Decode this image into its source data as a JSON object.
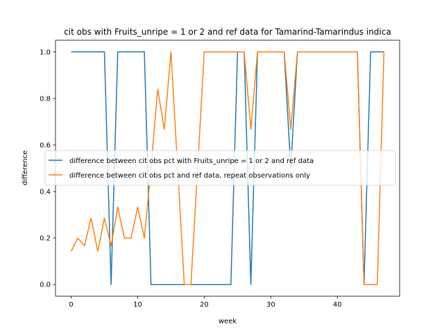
{
  "chart_data": {
    "type": "line",
    "title": "cit obs with Fruits_unripe = 1 or 2 and ref data for Tamarind-Tamarindus indica",
    "xlabel": "week",
    "ylabel": "difference",
    "xlim": [
      -2.35,
      49.35
    ],
    "ylim": [
      -0.05,
      1.05
    ],
    "xticks": [
      0,
      10,
      20,
      30,
      40
    ],
    "xtick_labels": [
      "0",
      "10",
      "20",
      "30",
      "40"
    ],
    "yticks": [
      0.0,
      0.2,
      0.4,
      0.6,
      0.8,
      1.0
    ],
    "ytick_labels": [
      "0.0",
      "0.2",
      "0.4",
      "0.6",
      "0.8",
      "1.0"
    ],
    "grid": false,
    "legend_position": "center-right",
    "series": [
      {
        "name": "difference between cit obs pct with Fruits_unripe = 1 or 2 and ref data",
        "color": "#1f77b4",
        "x": [
          0,
          1,
          2,
          3,
          4,
          5,
          6,
          7,
          8,
          9,
          10,
          11,
          12,
          13,
          14,
          15,
          16,
          17,
          18,
          19,
          20,
          21,
          22,
          23,
          24,
          25,
          26,
          27,
          28,
          29,
          30,
          31,
          32,
          33,
          34,
          35,
          36,
          37,
          38,
          39,
          40,
          41,
          42,
          43,
          44,
          45,
          46,
          47
        ],
        "y": [
          1,
          1,
          1,
          1,
          1,
          1,
          0,
          1,
          1,
          1,
          1,
          1,
          0,
          0,
          0,
          0,
          0,
          0,
          0,
          0,
          0,
          0,
          0,
          0,
          0,
          1,
          1,
          0,
          1,
          1,
          1,
          1,
          1,
          0.5,
          1,
          1,
          1,
          1,
          1,
          1,
          1,
          1,
          1,
          1,
          0,
          1,
          1,
          1
        ]
      },
      {
        "name": "difference between cit obs pct and ref data, repeat observations only",
        "color": "#ff7f0e",
        "x": [
          0,
          1,
          2,
          3,
          4,
          5,
          6,
          7,
          8,
          9,
          10,
          11,
          12,
          13,
          14,
          15,
          16,
          17,
          18,
          19,
          20,
          21,
          22,
          23,
          24,
          25,
          26,
          27,
          28,
          29,
          30,
          31,
          32,
          33,
          34,
          35,
          36,
          37,
          38,
          39,
          40,
          41,
          42,
          43,
          44,
          45,
          46,
          47
        ],
        "y": [
          0.143,
          0.2,
          0.167,
          0.286,
          0.143,
          0.286,
          0.167,
          0.333,
          0.2,
          0.2,
          0.333,
          0.2,
          0.5,
          0.84,
          0.667,
          1.0,
          0.5,
          0.0,
          0.0,
          0.5,
          1.0,
          1.0,
          1.0,
          1.0,
          1.0,
          1.0,
          1.0,
          0.667,
          1.0,
          1.0,
          1.0,
          1.0,
          1.0,
          0.667,
          1.0,
          1.0,
          1.0,
          1.0,
          1.0,
          1.0,
          1.0,
          1.0,
          1.0,
          1.0,
          0.0,
          0.0,
          0.0,
          1.0
        ]
      }
    ]
  }
}
